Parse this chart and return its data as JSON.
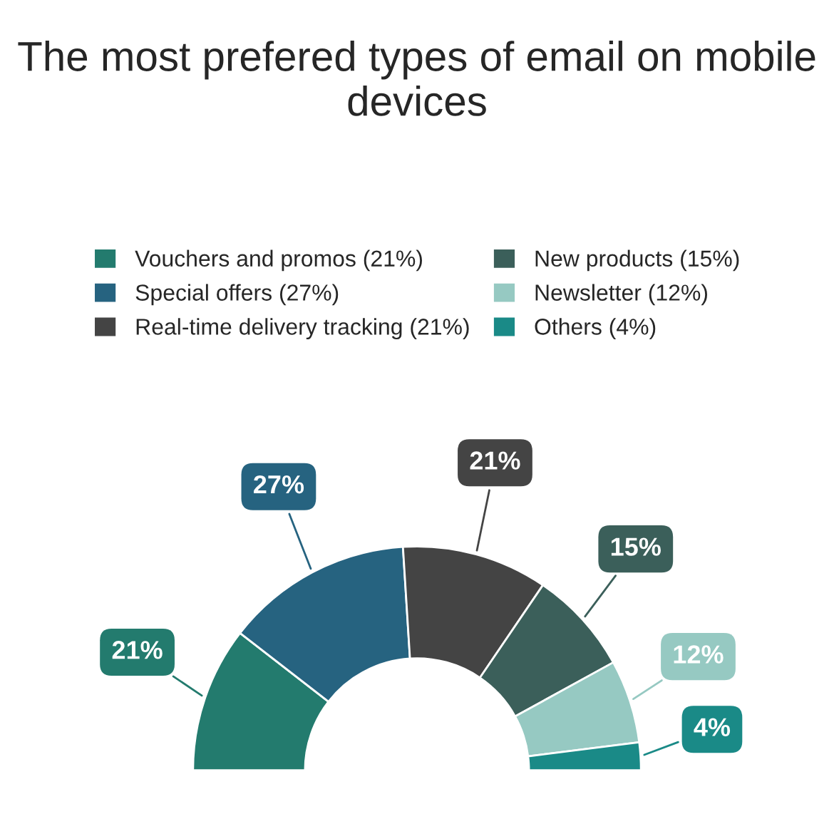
{
  "chart_data": {
    "type": "donut",
    "title": "The most prefered types of email on mobile devices",
    "categories": [
      "Vouchers and promos (21%)",
      "Special offers (27%)",
      "Real-time delivery tracking (21%)",
      "New products (15%)",
      "Newsletter (12%)",
      "Others (4%)"
    ],
    "values": [
      21,
      27,
      21,
      15,
      12,
      4
    ],
    "value_labels": [
      "21%",
      "27%",
      "21%",
      "15%",
      "12%",
      "4%"
    ],
    "colors": [
      "#237b6e",
      "#266380",
      "#444444",
      "#3b5f5a",
      "#96c9c2",
      "#1a8a87"
    ],
    "legend": "top"
  }
}
